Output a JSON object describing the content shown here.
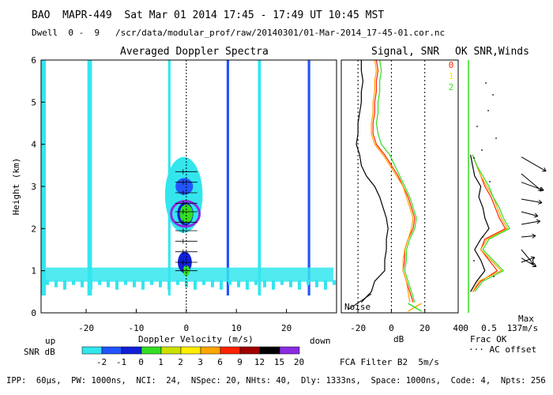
{
  "header": {
    "line1": "BAO  MAPR-449  Sat Mar 01 2014 17:45 - 17:49 UT 10:45 MST",
    "line2": "Dwell  0 -  9   /scr/data/modular_prof/raw/20140301/01-Mar-2014_17-45-01.cor.nc"
  },
  "colors": {
    "cyan": "#33e6ee",
    "blue_light": "#2255ff",
    "blue": "#1020d8",
    "purple": "#8a2be2",
    "green": "#33dd22",
    "yellow_green": "#cce000",
    "yellow": "#ffee00",
    "orange": "#ffa500",
    "red": "#ff2200",
    "black": "#000000",
    "pink": "#ff55aa"
  },
  "spectra_panel": {
    "title": "Averaged Doppler Spectra",
    "xlabel": "Doppler Velocity (m/s)",
    "ylabel": "Height (km)",
    "x_ticks": [
      "-20",
      "-10",
      "0",
      "10",
      "20"
    ],
    "y_ticks": [
      "0",
      "1",
      "2",
      "3",
      "4",
      "5",
      "6"
    ],
    "left_note": "up",
    "right_note": "down"
  },
  "snr_panel": {
    "title": "Signal, SNR",
    "xlabel": "dB",
    "x_ticks": [
      "-20",
      "0",
      "20",
      "40"
    ],
    "noise_label": "Noise",
    "footer": "FCA Filter B2  5m/s"
  },
  "winds_panel": {
    "title": "OK SNR,Winds",
    "legend": [
      "0",
      "1",
      "2"
    ],
    "x_ticks": [
      "0.5",
      "1"
    ],
    "frac_label": "Frac OK",
    "ac_label": "··· AC offset",
    "max_label": "Max",
    "max_value": "37m/s"
  },
  "colorbar": {
    "label": "SNR dB",
    "labels": [
      "-2",
      "-1",
      "0",
      "1",
      "2",
      "3",
      "6",
      "9",
      "12",
      "15",
      "20"
    ]
  },
  "footer": "IPP:  60μs,  PW: 1000ns,  NCI:  24,  NSpec: 20, NHts: 40,  Dly: 1333ns,  Space: 1000ns,  Code: 4,  Npts: 256",
  "chart_data": [
    {
      "type": "heatmap",
      "title": "Averaged Doppler Spectra",
      "xlabel": "Doppler Velocity (m/s)",
      "ylabel": "Height (km)",
      "xlim": [
        -29,
        30
      ],
      "ylim": [
        0,
        6
      ],
      "vertical_stripes": [
        {
          "velocity": -28.5,
          "width": 0.9,
          "snr_db": -2
        },
        {
          "velocity": -19.3,
          "width": 0.9,
          "snr_db": -2
        },
        {
          "velocity": -3.4,
          "width": 0.5,
          "snr_db": -2
        },
        {
          "velocity": 8.3,
          "width": 0.5,
          "snr_db": -1
        },
        {
          "velocity": 14.6,
          "width": 0.6,
          "snr_db": -2
        },
        {
          "velocity": 24.5,
          "width": 0.5,
          "snr_db": -1
        }
      ],
      "echo_blobs": [
        {
          "v": -0.5,
          "h": 2.8,
          "vw": 7.5,
          "hh": 1.8,
          "snr_db": -2
        },
        {
          "v": -0.4,
          "h": 3.0,
          "vw": 3.5,
          "hh": 0.4,
          "snr_db": -1
        },
        {
          "v": -0.2,
          "h": 2.35,
          "vw": 3.2,
          "hh": 0.55,
          "snr_db": 0
        },
        {
          "v": 0.0,
          "h": 2.35,
          "vw": 2.6,
          "hh": 0.45,
          "snr_db": 1
        },
        {
          "v": -0.3,
          "h": 1.2,
          "vw": 2.8,
          "hh": 0.5,
          "snr_db": 0
        },
        {
          "v": 0.0,
          "h": 1.0,
          "vw": 1.4,
          "hh": 0.25,
          "snr_db": 1
        }
      ],
      "ground_clutter_height_km": 0.85
    },
    {
      "type": "line",
      "title": "Signal, SNR",
      "xlabel": "dB",
      "xlim": [
        -30,
        40
      ],
      "ylim": [
        0,
        6
      ],
      "heights_km": [
        0.25,
        0.5,
        0.75,
        1.0,
        1.25,
        1.5,
        1.75,
        2.0,
        2.25,
        2.5,
        2.75,
        3.0,
        3.25,
        3.5,
        3.75,
        4.0,
        4.25,
        4.5,
        4.75,
        5.0,
        5.25,
        5.5,
        5.75,
        6.0
      ],
      "series": [
        {
          "name": "Signal",
          "color": "black",
          "values": [
            -18,
            -12,
            -10,
            -4,
            -4,
            -3,
            -3,
            -2,
            -3,
            -5,
            -7,
            -10,
            -15,
            -18,
            -19,
            -21,
            -20,
            -20,
            -19,
            -18,
            -18,
            -17,
            -18,
            -18
          ]
        },
        {
          "name": "SNR 0",
          "color": "red",
          "values": [
            13,
            11,
            9,
            7,
            8,
            8,
            10,
            13,
            14,
            12,
            10,
            7,
            4,
            0,
            -4,
            -9,
            -11,
            -11,
            -10,
            -10,
            -9,
            -9,
            -8,
            -9
          ]
        },
        {
          "name": "SNR 1",
          "color": "orange",
          "values": [
            11,
            10,
            9,
            7,
            7,
            8,
            10,
            12,
            13,
            11,
            9,
            7,
            3,
            -1,
            -5,
            -10,
            -12,
            -12,
            -11,
            -11,
            -10,
            -10,
            -9,
            -10
          ]
        },
        {
          "name": "SNR 2",
          "color": "green",
          "values": [
            14,
            12,
            10,
            8,
            9,
            9,
            11,
            14,
            15,
            13,
            11,
            8,
            5,
            2,
            -1,
            -6,
            -8,
            -9,
            -8,
            -8,
            -7,
            -7,
            -6,
            -7
          ]
        }
      ]
    },
    {
      "type": "line",
      "title": "OK SNR,Winds",
      "xlabel": "Frac OK",
      "xlim": [
        0,
        1
      ],
      "ylim": [
        0,
        6
      ],
      "heights_km": [
        0.5,
        0.75,
        1.0,
        1.25,
        1.5,
        1.75,
        2.0,
        2.25,
        2.5,
        2.75,
        3.0,
        3.25,
        3.5,
        3.75
      ],
      "series": [
        {
          "name": "0",
          "color": "red",
          "values": [
            0.1,
            0.3,
            0.7,
            0.5,
            0.3,
            0.4,
            0.9,
            0.75,
            0.65,
            0.55,
            0.4,
            0.3,
            0.2,
            0.1
          ]
        },
        {
          "name": "1",
          "color": "orange",
          "values": [
            0.1,
            0.25,
            0.8,
            0.55,
            0.3,
            0.45,
            0.95,
            0.8,
            0.7,
            0.6,
            0.45,
            0.3,
            0.2,
            0.1
          ]
        },
        {
          "name": "2",
          "color": "green",
          "values": [
            0.15,
            0.35,
            0.85,
            0.6,
            0.35,
            0.5,
            1.0,
            0.85,
            0.75,
            0.6,
            0.5,
            0.35,
            0.2,
            0.1
          ]
        },
        {
          "name": "Frac OK",
          "color": "black",
          "values": [
            0.05,
            0.2,
            0.4,
            0.3,
            0.15,
            0.3,
            0.5,
            0.4,
            0.35,
            0.25,
            0.3,
            0.15,
            0.1,
            0.05
          ]
        }
      ],
      "wind_barbs": [
        {
          "height_km": 3.7,
          "dir_deg": 60,
          "speed_ms": 30
        },
        {
          "height_km": 3.3,
          "dir_deg": 50,
          "speed_ms": 28
        },
        {
          "height_km": 3.1,
          "dir_deg": 70,
          "speed_ms": 25
        },
        {
          "height_km": 2.7,
          "dir_deg": 80,
          "speed_ms": 22
        },
        {
          "height_km": 2.4,
          "dir_deg": 75,
          "speed_ms": 18
        },
        {
          "height_km": 2.1,
          "dir_deg": 100,
          "speed_ms": 20
        },
        {
          "height_km": 1.8,
          "dir_deg": 95,
          "speed_ms": 15
        },
        {
          "height_km": 1.5,
          "dir_deg": 40,
          "speed_ms": 20
        },
        {
          "height_km": 1.3,
          "dir_deg": 60,
          "speed_ms": 18
        },
        {
          "height_km": 1.2,
          "dir_deg": 110,
          "speed_ms": 15
        }
      ]
    }
  ]
}
